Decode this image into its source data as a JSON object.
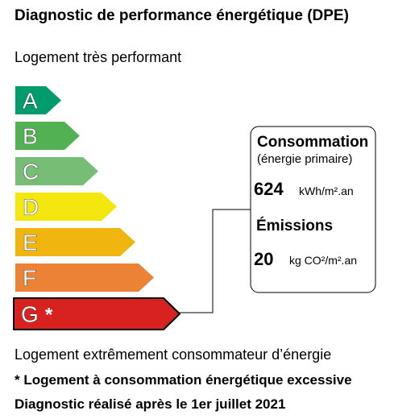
{
  "title": "Diagnostic de performance énergétique (DPE)",
  "subtitle": "Logement très performant",
  "classes": [
    {
      "letter": "A",
      "color": "#009c6d"
    },
    {
      "letter": "B",
      "color": "#52b153"
    },
    {
      "letter": "C",
      "color": "#78bd76"
    },
    {
      "letter": "D",
      "color": "#f4e70f"
    },
    {
      "letter": "E",
      "color": "#f0b50f"
    },
    {
      "letter": "F",
      "color": "#eb8235"
    },
    {
      "letter": "G",
      "color": "#d7221f",
      "marker": "*"
    }
  ],
  "active_class": "G",
  "consumption": {
    "title": "Consommation",
    "subtitle": "(énergie primaire)",
    "value": "624",
    "unit": "kWh/m².an"
  },
  "emissions": {
    "title": "Émissions",
    "value": "20",
    "unit": "kg CO²/m².an"
  },
  "footer": {
    "line1": "Logement extrêmement consommateur d’énergie",
    "line2": "* Logement à consommation énergétique excessive",
    "line3": "Diagnostic réalisé après le 1er juillet 2021"
  }
}
